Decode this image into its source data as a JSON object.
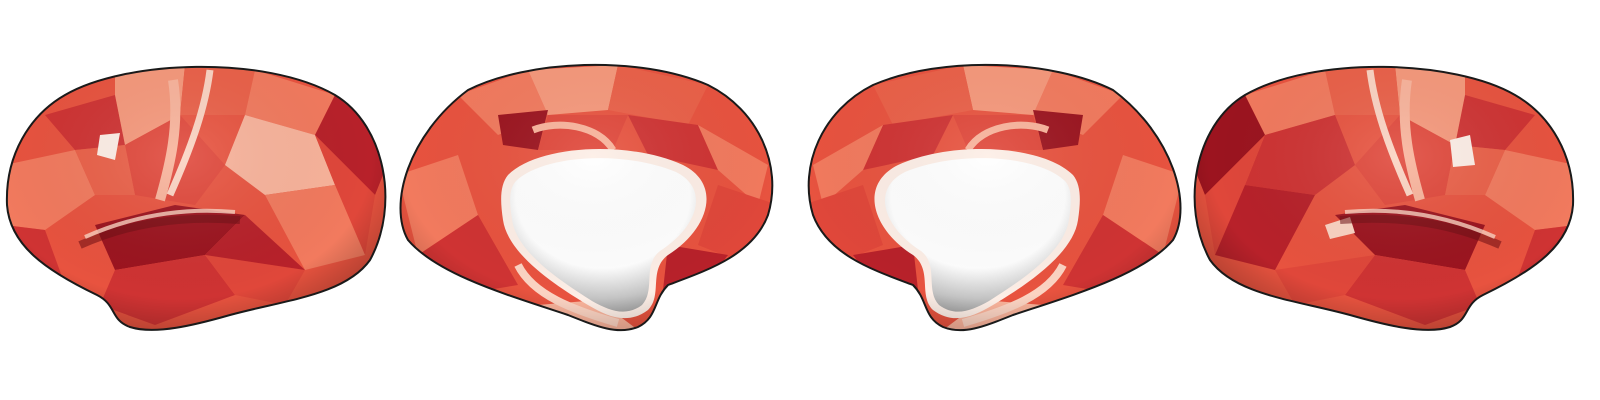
{
  "figure": {
    "views": [
      {
        "id": "left-lateral"
      },
      {
        "id": "left-medial"
      },
      {
        "id": "right-medial"
      },
      {
        "id": "right-lateral"
      }
    ],
    "colors": {
      "background": "#ffffff",
      "outline": "#1a1a1a",
      "base": "#e8533f",
      "palette": [
        "#9c141f",
        "#b8212a",
        "#cf3333",
        "#e0473a",
        "#ea6048",
        "#f27a5e",
        "#f6987b",
        "#f9b39b",
        "#fbd3c2",
        "#fdeee6"
      ],
      "medial_wall": "#ffffff",
      "medial_shadow": "#8a8a8a"
    }
  }
}
